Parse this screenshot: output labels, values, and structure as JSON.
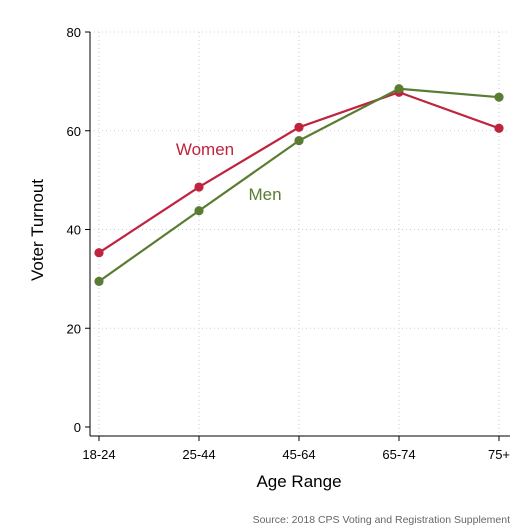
{
  "chart_data": {
    "type": "line",
    "categories": [
      "18-24",
      "25-44",
      "45-64",
      "65-74",
      "75+"
    ],
    "series": [
      {
        "name": "Women",
        "values": [
          35.3,
          48.6,
          60.7,
          67.8,
          60.5
        ],
        "color": "#c0233e"
      },
      {
        "name": "Men",
        "values": [
          29.5,
          43.8,
          58.0,
          68.5,
          66.8
        ],
        "color": "#5a7c32"
      }
    ],
    "title": "",
    "xlabel": "Age Range",
    "ylabel": "Voter Turnout",
    "ylim": [
      0,
      80
    ],
    "yticks": [
      0,
      20,
      40,
      60,
      80
    ],
    "grid": true,
    "legend": "inline labels",
    "source": "Source: 2018 CPS Voting and Registration Supplement"
  }
}
